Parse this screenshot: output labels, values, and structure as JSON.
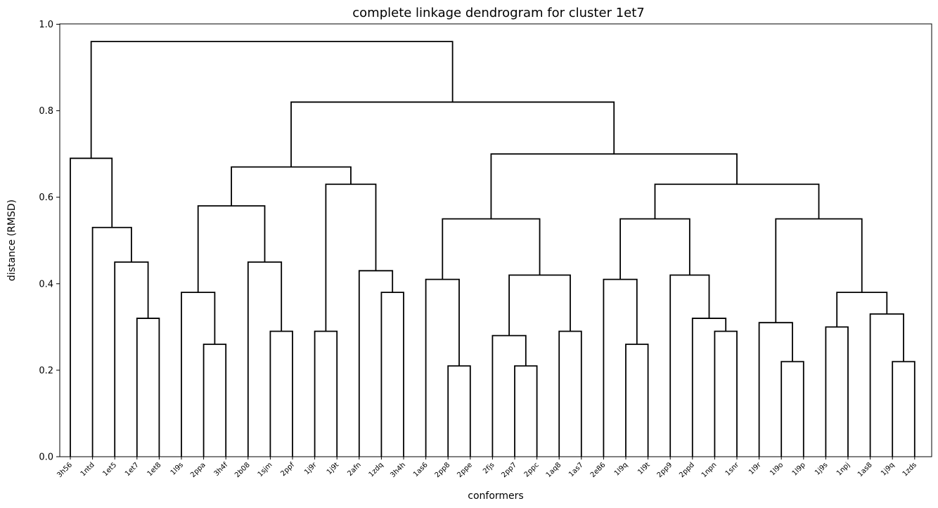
{
  "chart_data": {
    "type": "dendrogram",
    "title": "complete linkage dendrogram for cluster 1et7",
    "xlabel": "conformers",
    "ylabel": "distance (RMSD)",
    "ylim": [
      0,
      1.0
    ],
    "yticks": [
      "0.0",
      "0.2",
      "0.4",
      "0.6",
      "0.8",
      "1.0"
    ],
    "grid": false,
    "line_color": "#000000",
    "leaves": [
      "3h56",
      "1ntd",
      "1et5",
      "1et7",
      "1et8",
      "1l9s",
      "2ppa",
      "3h4f",
      "2b08",
      "1sjm",
      "2ppf",
      "1j9r",
      "1j9t",
      "2afn",
      "1zdq",
      "3h4h",
      "1as6",
      "2pp8",
      "2ppe",
      "2fjs",
      "2pp7",
      "2ppc",
      "1aq8",
      "1as7",
      "2e86",
      "1l9q",
      "1l9t",
      "2pp9",
      "2ppd",
      "1npn",
      "1snr",
      "1l9r",
      "1l9o",
      "1l9p",
      "1j9s",
      "1npj",
      "1as8",
      "1j9q",
      "1zds"
    ],
    "merges": [
      {
        "left": "L:3",
        "right": "L:4",
        "height": 0.32
      },
      {
        "left": "L:2",
        "right": "M:0",
        "height": 0.45
      },
      {
        "left": "L:1",
        "right": "M:1",
        "height": 0.53
      },
      {
        "left": "L:0",
        "right": "M:2",
        "height": 0.69
      },
      {
        "left": "L:6",
        "right": "L:7",
        "height": 0.26
      },
      {
        "left": "L:5",
        "right": "M:4",
        "height": 0.38
      },
      {
        "left": "L:9",
        "right": "L:10",
        "height": 0.29
      },
      {
        "left": "L:8",
        "right": "M:6",
        "height": 0.45
      },
      {
        "left": "M:5",
        "right": "M:7",
        "height": 0.58
      },
      {
        "left": "L:11",
        "right": "L:12",
        "height": 0.29
      },
      {
        "left": "L:14",
        "right": "L:15",
        "height": 0.38
      },
      {
        "left": "L:13",
        "right": "M:10",
        "height": 0.43
      },
      {
        "left": "M:9",
        "right": "M:11",
        "height": 0.63
      },
      {
        "left": "M:8",
        "right": "M:12",
        "height": 0.67
      },
      {
        "left": "L:17",
        "right": "L:18",
        "height": 0.21
      },
      {
        "left": "L:16",
        "right": "M:14",
        "height": 0.41
      },
      {
        "left": "L:20",
        "right": "L:21",
        "height": 0.21
      },
      {
        "left": "L:19",
        "right": "M:16",
        "height": 0.28
      },
      {
        "left": "L:22",
        "right": "L:23",
        "height": 0.29
      },
      {
        "left": "M:17",
        "right": "M:18",
        "height": 0.42
      },
      {
        "left": "M:15",
        "right": "M:19",
        "height": 0.55
      },
      {
        "left": "L:25",
        "right": "L:26",
        "height": 0.26
      },
      {
        "left": "L:24",
        "right": "M:21",
        "height": 0.41
      },
      {
        "left": "L:29",
        "right": "L:30",
        "height": 0.29
      },
      {
        "left": "L:28",
        "right": "M:23",
        "height": 0.32
      },
      {
        "left": "L:27",
        "right": "M:24",
        "height": 0.42
      },
      {
        "left": "M:22",
        "right": "M:25",
        "height": 0.55
      },
      {
        "left": "L:32",
        "right": "L:33",
        "height": 0.22
      },
      {
        "left": "L:31",
        "right": "M:27",
        "height": 0.31
      },
      {
        "left": "L:34",
        "right": "L:35",
        "height": 0.3
      },
      {
        "left": "L:37",
        "right": "L:38",
        "height": 0.22
      },
      {
        "left": "L:36",
        "right": "M:30",
        "height": 0.33
      },
      {
        "left": "M:29",
        "right": "M:31",
        "height": 0.38
      },
      {
        "left": "M:28",
        "right": "M:32",
        "height": 0.55
      },
      {
        "left": "M:26",
        "right": "M:33",
        "height": 0.63
      },
      {
        "left": "M:20",
        "right": "M:34",
        "height": 0.7
      },
      {
        "left": "M:13",
        "right": "M:35",
        "height": 0.82
      },
      {
        "left": "M:3",
        "right": "M:36",
        "height": 0.96
      }
    ]
  }
}
